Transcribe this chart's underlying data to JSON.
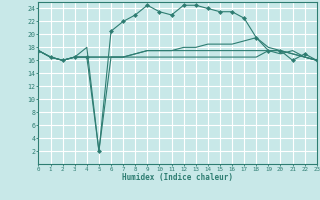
{
  "xlabel": "Humidex (Indice chaleur)",
  "bg_color": "#c8e8e8",
  "grid_color": "#ffffff",
  "line_color": "#2e7d72",
  "xmin": 0,
  "xmax": 23,
  "ymin": 0,
  "ymax": 25,
  "yticks": [
    2,
    4,
    6,
    8,
    10,
    12,
    14,
    16,
    18,
    20,
    22,
    24
  ],
  "xticks": [
    0,
    1,
    2,
    3,
    4,
    5,
    6,
    7,
    8,
    9,
    10,
    11,
    12,
    13,
    14,
    15,
    16,
    17,
    18,
    19,
    20,
    21,
    22,
    23
  ],
  "series": [
    {
      "x": [
        0,
        1,
        2,
        3,
        4,
        5,
        6,
        7,
        8,
        9,
        10,
        11,
        12,
        13,
        14,
        15,
        16,
        17,
        18,
        19,
        20,
        21,
        22,
        23
      ],
      "y": [
        17.5,
        16.5,
        16.0,
        16.5,
        16.5,
        2.0,
        20.5,
        22.0,
        23.0,
        24.5,
        23.5,
        23.0,
        24.5,
        24.5,
        24.0,
        23.5,
        23.5,
        22.5,
        19.5,
        17.5,
        17.5,
        16.0,
        17.0,
        16.0
      ],
      "marker": "D",
      "markersize": 2.0
    },
    {
      "x": [
        0,
        1,
        2,
        3,
        4,
        5,
        6,
        7,
        8,
        9,
        10,
        11,
        12,
        13,
        14,
        15,
        16,
        17,
        18,
        19,
        20,
        21,
        22,
        23
      ],
      "y": [
        17.5,
        16.5,
        16.0,
        16.5,
        18.0,
        2.0,
        16.5,
        16.5,
        16.5,
        16.5,
        16.5,
        16.5,
        16.5,
        16.5,
        16.5,
        16.5,
        16.5,
        16.5,
        16.5,
        17.5,
        17.0,
        17.5,
        16.5,
        16.0
      ],
      "marker": null,
      "markersize": 0
    },
    {
      "x": [
        0,
        1,
        2,
        3,
        4,
        5,
        6,
        7,
        8,
        9,
        10,
        11,
        12,
        13,
        14,
        15,
        16,
        17,
        18,
        19,
        20,
        21,
        22,
        23
      ],
      "y": [
        17.5,
        16.5,
        16.0,
        16.5,
        16.5,
        16.5,
        16.5,
        16.5,
        17.0,
        17.5,
        17.5,
        17.5,
        18.0,
        18.0,
        18.5,
        18.5,
        18.5,
        19.0,
        19.5,
        18.0,
        17.5,
        17.0,
        16.5,
        16.0
      ],
      "marker": null,
      "markersize": 0
    },
    {
      "x": [
        0,
        1,
        2,
        3,
        4,
        5,
        6,
        7,
        8,
        9,
        10,
        11,
        12,
        13,
        14,
        15,
        16,
        17,
        18,
        19,
        20,
        21,
        22,
        23
      ],
      "y": [
        17.5,
        16.5,
        16.0,
        16.5,
        16.5,
        16.5,
        16.5,
        16.5,
        17.0,
        17.5,
        17.5,
        17.5,
        17.5,
        17.5,
        17.5,
        17.5,
        17.5,
        17.5,
        17.5,
        17.5,
        17.5,
        17.0,
        16.5,
        16.0
      ],
      "marker": null,
      "markersize": 0
    }
  ]
}
